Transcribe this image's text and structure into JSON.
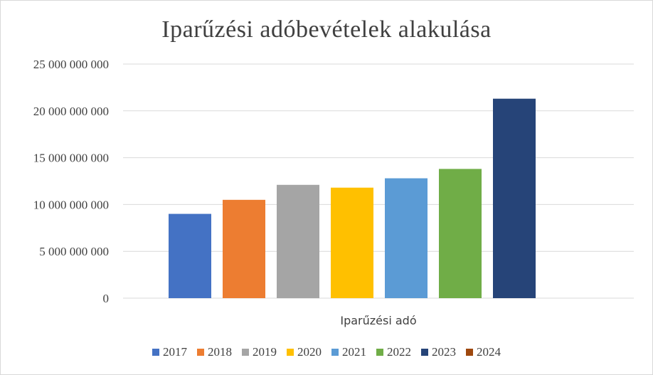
{
  "chart_data": {
    "type": "bar",
    "title": "Iparűzési adóbevételek alakulása",
    "categories": [
      "Iparűzési adó"
    ],
    "y_ticks": [
      "0",
      "5 000 000 000",
      "10 000 000 000",
      "15 000 000 000",
      "20 000 000 000",
      "25 000 000 000"
    ],
    "ylim": [
      0,
      25000000000
    ],
    "grid": true,
    "legend_position": "bottom",
    "series": [
      {
        "name": "2017",
        "value": 9000000000,
        "color": "#4472C4"
      },
      {
        "name": "2018",
        "value": 10500000000,
        "color": "#ED7D31"
      },
      {
        "name": "2019",
        "value": 12100000000,
        "color": "#A5A5A5"
      },
      {
        "name": "2020",
        "value": 11800000000,
        "color": "#FFC000"
      },
      {
        "name": "2021",
        "value": 12800000000,
        "color": "#5B9BD5"
      },
      {
        "name": "2022",
        "value": 13800000000,
        "color": "#70AD47"
      },
      {
        "name": "2023",
        "value": 21300000000,
        "color": "#264478"
      },
      {
        "name": "2024",
        "value": 0,
        "color": "#9E480E"
      }
    ]
  }
}
